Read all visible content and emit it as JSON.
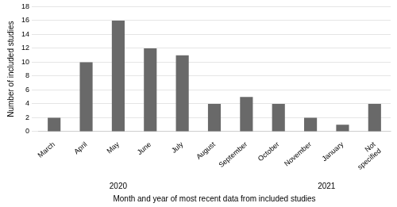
{
  "chart_data": {
    "type": "bar",
    "categories": [
      "March",
      "April",
      "May",
      "June",
      "July",
      "August",
      "September",
      "October",
      "November",
      "January",
      "Not\nspecified"
    ],
    "values": [
      2,
      10,
      16,
      12,
      11,
      4,
      5,
      4,
      2,
      1,
      4
    ],
    "color": "#696969",
    "ylim": [
      0,
      18
    ],
    "yticks": [
      0,
      2,
      4,
      6,
      8,
      10,
      12,
      14,
      16,
      18
    ],
    "ylabel": "Number of included studies",
    "xlabel": "Month and year of most recent data from included studies",
    "annotations": [
      {
        "text": "2020",
        "from": "March",
        "to": "July"
      },
      {
        "text": "2021",
        "from": "November",
        "to": "January"
      }
    ],
    "grid": true
  }
}
